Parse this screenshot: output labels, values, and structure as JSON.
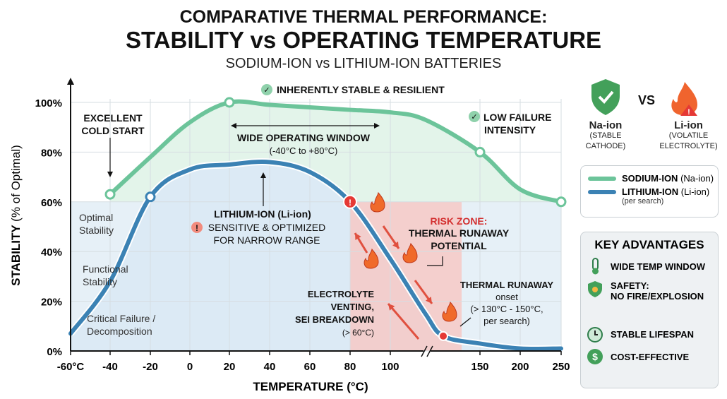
{
  "title": {
    "line1": "COMPARATIVE THERMAL PERFORMANCE:",
    "line2": "STABILITY vs OPERATING TEMPERATURE",
    "subtitle": "SODIUM-ION vs LITHIUM-ION BATTERIES"
  },
  "colors": {
    "sodium": "#6cc49a",
    "lithium": "#3b82b4",
    "risk": "#e53935"
  },
  "chart_data": {
    "type": "line",
    "xlabel": "TEMPERATURE (°C)",
    "ylabel_bold": "STABILITY",
    "ylabel_rest": "(% of Optimal)",
    "x_ticks": [
      "-60°C",
      "-40",
      "-20",
      "0",
      "20",
      "40",
      "60",
      "80",
      "100",
      "150",
      "200",
      "250"
    ],
    "y_ticks": [
      "0%",
      "20%",
      "40%",
      "60%",
      "80%",
      "100%"
    ],
    "ylim": [
      0,
      100
    ],
    "x_axis_break": "between 100 and 150",
    "grid": true,
    "series": [
      {
        "name": "SODIUM-ION (Na-ion)",
        "color": "#6cc49a",
        "x": [
          -40,
          -20,
          0,
          20,
          40,
          60,
          80,
          100,
          120,
          150,
          200,
          250
        ],
        "y": [
          63,
          78,
          92,
          100,
          99,
          98,
          97,
          96,
          93,
          80,
          65,
          60
        ],
        "markers": [
          -40,
          20,
          150,
          250
        ]
      },
      {
        "name": "LITHIUM-ION (Li-ion)",
        "color": "#3b82b4",
        "x": [
          -60,
          -40,
          -20,
          0,
          20,
          40,
          60,
          80,
          100,
          120,
          130,
          150,
          200,
          250
        ],
        "y": [
          7,
          28,
          62,
          73,
          75,
          76,
          72,
          60,
          37,
          15,
          6,
          3,
          1,
          1
        ],
        "markers": [
          -20,
          80,
          130
        ]
      }
    ],
    "risk_zone": {
      "x_from": 80,
      "x_to": 140,
      "y_from": 0,
      "y_to": 60
    },
    "annotations": {
      "inherently_stable": "INHERENTLY STABLE & RESILIENT",
      "cold_start": [
        "EXCELLENT",
        "COLD START"
      ],
      "wide_window": "WIDE OPERATING WINDOW",
      "wide_window_range": "(-40°C to +80°C)",
      "low_failure": [
        "LOW FAILURE",
        "INTENSITY"
      ],
      "li_title": "LITHIUM-ION (Li-ion)",
      "li_desc": [
        "SENSITIVE & OPTIMIZED",
        "FOR NARROW RANGE"
      ],
      "zones": [
        [
          "Optimal",
          "Stability"
        ],
        [
          "Functional",
          "Stability"
        ],
        [
          "Critical Failure /",
          "Decomposition"
        ]
      ],
      "risk_title": "RISK ZONE:",
      "risk_desc": [
        "THERMAL RUNAWAY",
        "POTENTIAL"
      ],
      "venting": [
        "ELECTROLYTE",
        "VENTING,",
        "SEI BREAKDOWN",
        "(> 60°C)"
      ],
      "runaway": [
        "THERMAL RUNAWAY",
        "onset",
        "(> 130°C - 150°C,",
        "per search)"
      ]
    }
  },
  "compare": {
    "vs": "VS",
    "na_name": "Na-ion",
    "na_desc": [
      "(STABLE",
      "CATHODE)"
    ],
    "li_name": "Li-ion",
    "li_desc": [
      "(VOLATILE",
      "ELECTROLYTE)"
    ]
  },
  "legend": {
    "na_bold": "SODIUM-ION",
    "na_rest": "(Na-ion)",
    "li_bold": "LITHIUM-ION",
    "li_rest": "(Li-ion)",
    "li_note": "(per search)"
  },
  "advantages": {
    "title": "KEY ADVANTAGES",
    "items": [
      "WIDE TEMP WINDOW",
      "SAFETY:\nNO FIRE/EXPLOSION",
      "STABLE LIFESPAN",
      "COST-EFFECTIVE"
    ]
  }
}
